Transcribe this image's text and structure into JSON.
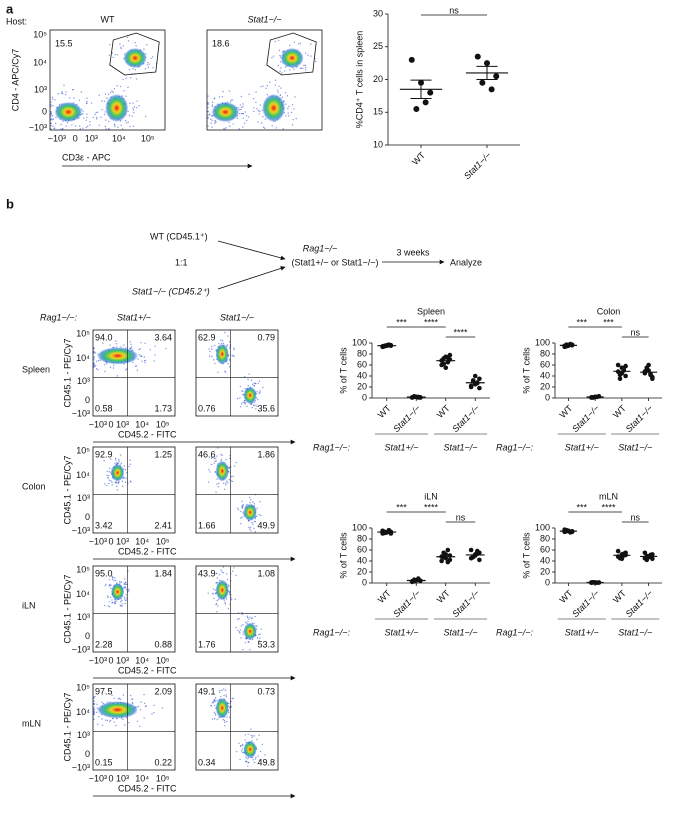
{
  "panel_labels": [
    "a",
    "b"
  ],
  "flow_a": {
    "host_label": "Host:",
    "columns": [
      "WT",
      "Stat1−/−"
    ],
    "gates": [
      "15.5",
      "18.6"
    ],
    "ylabel": "CD4 - APC/Cy7",
    "xlabel": "CD3ε - APC",
    "yticks": [
      "10⁵",
      "10⁴",
      "10³",
      "0",
      "−10³"
    ],
    "xticks": [
      "−10³",
      "0",
      "10³",
      "10⁴",
      "10⁵"
    ]
  },
  "schematic": {
    "donor1": "WT (CD45.1⁺)",
    "ratio": "1:1",
    "donor2": "Stat1−/− (CD45.2⁺)",
    "host": "Rag1−/−",
    "host_sub": "(Stat1+/− or Stat1−/−)",
    "time": "3 weeks",
    "end": "Analyze"
  },
  "flow_b": {
    "prefix": "Rag1−/−:",
    "columns": [
      "Stat1+/−",
      "Stat1−/−"
    ],
    "ylabel": "CD45.1 - PE/Cy7",
    "xlabel": "CD45.2 - FITC",
    "yticks": [
      "10⁵",
      "10⁴",
      "10³",
      "0",
      "−10³"
    ],
    "xticks": [
      "−10³",
      "0",
      "10³",
      "10⁴",
      "10⁵"
    ],
    "rows": [
      {
        "name": "Spleen",
        "quadrants": [
          [
            "94.0",
            "3.64",
            "0.58",
            "1.73"
          ],
          [
            "62.9",
            "0.79",
            "0.76",
            "35.6"
          ]
        ]
      },
      {
        "name": "Colon",
        "quadrants": [
          [
            "92.9",
            "1.25",
            "3.42",
            "2.41"
          ],
          [
            "46.6",
            "1.86",
            "1.66",
            "49.9"
          ]
        ]
      },
      {
        "name": "iLN",
        "quadrants": [
          [
            "95.0",
            "1.84",
            "2.28",
            "0.88"
          ],
          [
            "43.9",
            "1.08",
            "1.76",
            "53.3"
          ]
        ]
      },
      {
        "name": "mLN",
        "quadrants": [
          [
            "97.5",
            "2.09",
            "0.15",
            "0.22"
          ],
          [
            "49.1",
            "0.73",
            "0.34",
            "49.8"
          ]
        ]
      }
    ]
  },
  "chart_data": [
    {
      "type": "dot",
      "ylabel": "%CD4⁺ T cells in spleen",
      "categories": [
        "WT",
        "Stat1−/−"
      ],
      "points": [
        [
          23,
          19.5,
          18,
          15.5,
          16.5
        ],
        [
          23.5,
          22.5,
          20.5,
          19.5,
          18.5
        ]
      ],
      "means": [
        18.5,
        21
      ],
      "sem": [
        1.4,
        1.0
      ],
      "ylim": [
        10,
        30
      ],
      "yticks": [
        10,
        15,
        20,
        25,
        30
      ],
      "annotations": [
        "ns"
      ]
    },
    {
      "type": "dot",
      "title": "Spleen",
      "ylabel": "% of T cells",
      "categories": [
        "WT",
        "Stat1−/−",
        "WT",
        "Stat1−/−"
      ],
      "points": [
        [
          94,
          95,
          96,
          95,
          97,
          93,
          96,
          95,
          94,
          96
        ],
        [
          1,
          2,
          1,
          3,
          2,
          1,
          2,
          1,
          2,
          1
        ],
        [
          60,
          75,
          70,
          72,
          65,
          68,
          55,
          78,
          62,
          73
        ],
        [
          20,
          25,
          35,
          30,
          28,
          22,
          40,
          18,
          32,
          27
        ]
      ],
      "means": [
        95.1,
        1.6,
        67.8,
        27.7
      ],
      "ylim": [
        0,
        100
      ],
      "yticks": [
        0,
        20,
        40,
        60,
        80,
        100
      ],
      "annotations": [
        "***",
        "****",
        "****"
      ],
      "group_prefix": "Rag1−/−:",
      "groups": [
        "Stat1+/−",
        "Stat1−/−"
      ]
    },
    {
      "type": "dot",
      "title": "Colon",
      "ylabel": "% of T cells",
      "categories": [
        "WT",
        "Stat1−/−",
        "WT",
        "Stat1−/−"
      ],
      "points": [
        [
          95,
          96,
          97,
          94,
          98,
          93,
          95,
          96,
          97
        ],
        [
          1,
          2,
          3,
          1,
          2,
          1,
          2,
          3,
          1
        ],
        [
          48,
          55,
          40,
          35,
          50,
          60,
          45,
          58,
          42,
          52
        ],
        [
          45,
          50,
          38,
          55,
          42,
          48,
          60,
          35,
          52,
          44
        ]
      ],
      "means": [
        95.7,
        1.8,
        48.5,
        46.9
      ],
      "ylim": [
        0,
        100
      ],
      "yticks": [
        0,
        20,
        40,
        60,
        80,
        100
      ],
      "annotations": [
        "***",
        "***",
        "ns"
      ],
      "group_prefix": "Rag1−/−:",
      "groups": [
        "Stat1+/−",
        "Stat1−/−"
      ]
    },
    {
      "type": "dot",
      "title": "iLN",
      "ylabel": "% of T cells",
      "categories": [
        "WT",
        "Stat1−/−",
        "WT",
        "Stat1−/−"
      ],
      "points": [
        [
          90,
          92,
          93,
          91,
          94,
          95,
          92,
          90,
          93,
          96
        ],
        [
          3,
          5,
          4,
          6,
          8,
          2,
          5,
          4,
          3,
          6
        ],
        [
          40,
          45,
          50,
          55,
          38,
          48,
          52,
          42,
          47,
          60
        ],
        [
          45,
          52,
          55,
          48,
          58,
          60,
          50,
          42,
          47,
          53
        ]
      ],
      "means": [
        92.6,
        4.6,
        47.7,
        51.0
      ],
      "ylim": [
        0,
        100
      ],
      "yticks": [
        0,
        20,
        40,
        60,
        80,
        100
      ],
      "annotations": [
        "***",
        "****",
        "ns"
      ],
      "group_prefix": "Rag1−/−:",
      "groups": [
        "Stat1+/−",
        "Stat1−/−"
      ]
    },
    {
      "type": "dot",
      "title": "mLN",
      "ylabel": "% of T cells",
      "categories": [
        "WT",
        "Stat1−/−",
        "WT",
        "Stat1−/−"
      ],
      "points": [
        [
          93,
          95,
          94,
          96,
          92,
          97,
          95,
          93,
          94
        ],
        [
          0.5,
          1,
          0.8,
          1.2,
          0.6,
          1,
          0.7,
          0.9,
          1.1
        ],
        [
          48,
          52,
          55,
          45,
          50,
          58,
          44,
          51,
          47,
          53
        ],
        [
          45,
          48,
          52,
          42,
          50,
          55,
          47,
          44,
          49,
          51
        ]
      ],
      "means": [
        94.3,
        0.9,
        50.3,
        48.3
      ],
      "ylim": [
        0,
        100
      ],
      "yticks": [
        0,
        20,
        40,
        60,
        80,
        100
      ],
      "annotations": [
        "***",
        "****",
        "ns"
      ],
      "group_prefix": "Rag1−/−:",
      "groups": [
        "Stat1+/−",
        "Stat1−/−"
      ]
    }
  ]
}
